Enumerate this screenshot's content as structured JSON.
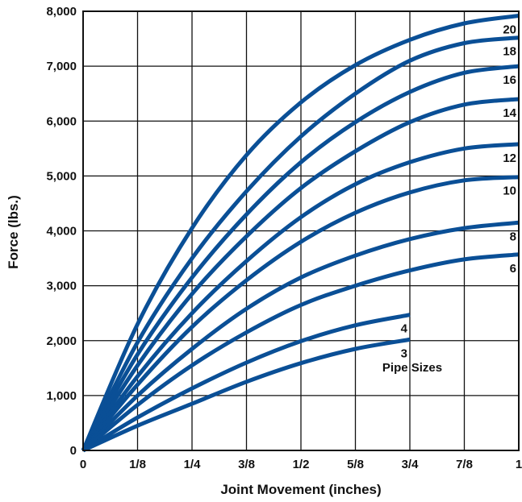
{
  "chart_data": {
    "type": "line",
    "xlabel": "Joint Movement (inches)",
    "ylabel": "Force (lbs.)",
    "xlim": [
      0,
      1
    ],
    "ylim": [
      0,
      8000
    ],
    "x_ticks": [
      {
        "value": 0,
        "label": "0"
      },
      {
        "value": 0.125,
        "label": "1/8"
      },
      {
        "value": 0.25,
        "label": "1/4"
      },
      {
        "value": 0.375,
        "label": "3/8"
      },
      {
        "value": 0.5,
        "label": "1/2"
      },
      {
        "value": 0.625,
        "label": "5/8"
      },
      {
        "value": 0.75,
        "label": "3/4"
      },
      {
        "value": 0.875,
        "label": "7/8"
      },
      {
        "value": 1,
        "label": "1"
      }
    ],
    "y_ticks": [
      {
        "value": 0,
        "label": "0"
      },
      {
        "value": 1000,
        "label": "1,000"
      },
      {
        "value": 2000,
        "label": "2,000"
      },
      {
        "value": 3000,
        "label": "3,000"
      },
      {
        "value": 4000,
        "label": "4,000"
      },
      {
        "value": 5000,
        "label": "5,000"
      },
      {
        "value": 6000,
        "label": "6,000"
      },
      {
        "value": 7000,
        "label": "7,000"
      },
      {
        "value": 8000,
        "label": "8,000"
      }
    ],
    "grid": true,
    "legend_title": "Pipe Sizes",
    "line_color": "#0a4f96",
    "series": [
      {
        "name": "20",
        "x": [
          0,
          0.125,
          0.25,
          0.375,
          0.5,
          0.625,
          0.75,
          0.875,
          1
        ],
        "y": [
          0,
          2300,
          4050,
          5380,
          6340,
          7020,
          7480,
          7780,
          7920
        ]
      },
      {
        "name": "18",
        "x": [
          0,
          0.125,
          0.25,
          0.375,
          0.5,
          0.625,
          0.75,
          0.875,
          1
        ],
        "y": [
          0,
          1970,
          3500,
          4720,
          5720,
          6500,
          7100,
          7420,
          7520
        ]
      },
      {
        "name": "16",
        "x": [
          0,
          0.125,
          0.25,
          0.375,
          0.5,
          0.625,
          0.75,
          0.875,
          1
        ],
        "y": [
          0,
          1750,
          3150,
          4300,
          5250,
          5980,
          6530,
          6880,
          7000
        ]
      },
      {
        "name": "14",
        "x": [
          0,
          0.125,
          0.25,
          0.375,
          0.5,
          0.625,
          0.75,
          0.875,
          1
        ],
        "y": [
          0,
          1550,
          2850,
          3900,
          4780,
          5450,
          5980,
          6300,
          6400
        ]
      },
      {
        "name": "12",
        "x": [
          0,
          0.125,
          0.25,
          0.375,
          0.5,
          0.625,
          0.75,
          0.875,
          1
        ],
        "y": [
          0,
          1350,
          2500,
          3450,
          4250,
          4850,
          5250,
          5500,
          5580
        ]
      },
      {
        "name": "10",
        "x": [
          0,
          0.125,
          0.25,
          0.375,
          0.5,
          0.625,
          0.75,
          0.875,
          1
        ],
        "y": [
          0,
          1200,
          2250,
          3100,
          3800,
          4330,
          4700,
          4920,
          4980
        ]
      },
      {
        "name": "8",
        "x": [
          0,
          0.125,
          0.25,
          0.375,
          0.5,
          0.625,
          0.75,
          0.875,
          1
        ],
        "y": [
          0,
          1000,
          1850,
          2580,
          3150,
          3550,
          3850,
          4050,
          4150
        ]
      },
      {
        "name": "6",
        "x": [
          0,
          0.125,
          0.25,
          0.375,
          0.5,
          0.625,
          0.75,
          0.875,
          1
        ],
        "y": [
          0,
          830,
          1550,
          2150,
          2650,
          3000,
          3280,
          3480,
          3570
        ]
      },
      {
        "name": "4",
        "x": [
          0,
          0.125,
          0.25,
          0.375,
          0.5,
          0.625,
          0.75
        ],
        "y": [
          0,
          600,
          1130,
          1600,
          1990,
          2280,
          2470
        ]
      },
      {
        "name": "3",
        "x": [
          0,
          0.125,
          0.25,
          0.375,
          0.5,
          0.625,
          0.75
        ],
        "y": [
          0,
          450,
          850,
          1250,
          1590,
          1850,
          2020
        ]
      }
    ]
  }
}
